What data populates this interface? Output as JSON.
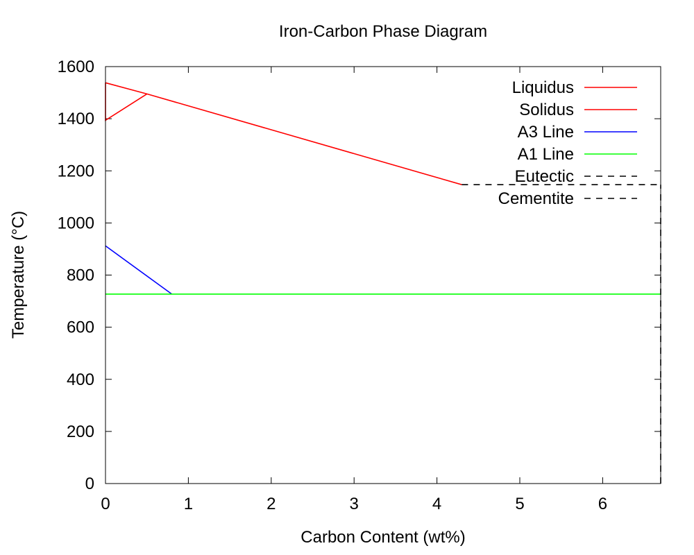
{
  "chart_data": {
    "type": "line",
    "title": "Iron-Carbon Phase Diagram",
    "xlabel": "Carbon Content (wt%)",
    "ylabel": "Temperature (°C)",
    "xlim": [
      0,
      6.7
    ],
    "ylim": [
      0,
      1600
    ],
    "x_ticks": [
      0,
      1,
      2,
      3,
      4,
      5,
      6
    ],
    "y_ticks": [
      0,
      200,
      400,
      600,
      800,
      1000,
      1200,
      1400,
      1600
    ],
    "grid": false,
    "legend_position": "top-right",
    "series": [
      {
        "name": "Liquidus",
        "color": "#ff0000",
        "dash": "solid",
        "x": [
          0,
          0.5,
          4.3
        ],
        "y": [
          1538,
          1495,
          1147
        ]
      },
      {
        "name": "Solidus",
        "color": "#ff0000",
        "dash": "solid",
        "x": [
          0,
          0,
          0.5
        ],
        "y": [
          1538,
          1394,
          1495
        ]
      },
      {
        "name": "A3 Line",
        "color": "#0000ff",
        "dash": "solid",
        "x": [
          0,
          0.8
        ],
        "y": [
          912,
          727
        ]
      },
      {
        "name": "A1 Line",
        "color": "#00ff00",
        "dash": "solid",
        "x": [
          0,
          6.7
        ],
        "y": [
          727,
          727
        ]
      },
      {
        "name": "Eutectic",
        "color": "#000000",
        "dash": "dashed",
        "x": [
          4.3,
          6.7
        ],
        "y": [
          1147,
          1147
        ]
      },
      {
        "name": "Cementite",
        "color": "#000000",
        "dash": "dashed",
        "x": [
          6.7,
          6.7
        ],
        "y": [
          0,
          1147
        ]
      }
    ]
  }
}
